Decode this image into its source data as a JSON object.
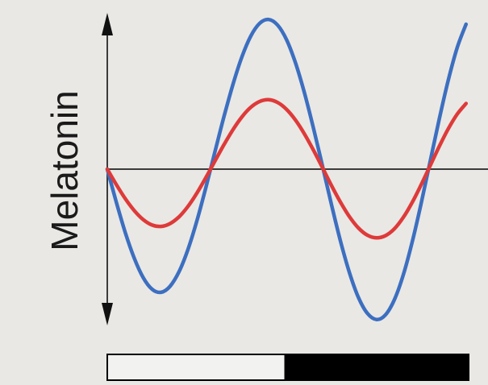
{
  "chart_data": {
    "type": "line",
    "title": "",
    "xlabel": "",
    "ylabel": "Melatonin",
    "x": [
      0,
      0.25,
      0.5,
      0.75,
      1,
      1.25,
      1.5,
      1.75,
      2,
      2.25,
      2.5,
      2.75,
      3,
      3.25,
      3.5,
      3.75,
      4,
      4.25,
      4.5,
      4.75,
      5,
      5.25,
      5.5,
      5.75,
      6,
      6.25,
      6.5,
      6.75,
      7,
      7.25,
      7.5,
      7.75,
      8,
      8.25,
      8.5,
      8.75,
      9,
      9.25,
      9.5,
      9.75,
      10
    ],
    "xlim": [
      0,
      10.5
    ],
    "ylim": [
      -1.05,
      1.05
    ],
    "series": [
      {
        "x": [
          0,
          0.25,
          0.5,
          0.75,
          1,
          1.25,
          1.5,
          1.75,
          2,
          2.25,
          2.5,
          2.75,
          3,
          3.25,
          3.5,
          3.75,
          4,
          4.25,
          4.5,
          4.75,
          5,
          5.25,
          5.5,
          5.75,
          6,
          6.25,
          6.5,
          6.75,
          7,
          7.25,
          7.5,
          7.75,
          8,
          8.25,
          8.5,
          8.75,
          9,
          9.25,
          9.5,
          9.75,
          10
        ],
        "values": [
          0,
          -0.235,
          -0.453,
          -0.638,
          -0.778,
          -0.862,
          -0.884,
          -0.841,
          -0.736,
          -0.575,
          -0.369,
          -0.13,
          0.123,
          0.374,
          0.606,
          0.804,
          0.955,
          1.047,
          1.074,
          1.033,
          0.927,
          0.76,
          0.544,
          0.292,
          0.02,
          -0.256,
          -0.516,
          -0.742,
          -0.92,
          -1.035,
          -1.079,
          -1.047,
          -0.939,
          -0.76,
          -0.523,
          -0.244,
          0.056,
          0.355,
          0.633,
          0.868,
          1.04
        ]
      },
      {
        "x": [
          0,
          0.25,
          0.5,
          0.75,
          1,
          1.25,
          1.5,
          1.75,
          2,
          2.25,
          2.5,
          2.75,
          3,
          3.25,
          3.5,
          3.75,
          4,
          4.25,
          4.5,
          4.75,
          5,
          5.25,
          5.5,
          5.75,
          6,
          6.25,
          6.5,
          6.75,
          7,
          7.25,
          7.5,
          7.75,
          8,
          8.25,
          8.5,
          8.75,
          9,
          9.25,
          9.5,
          9.75,
          10
        ],
        "values": [
          0,
          -0.11,
          -0.211,
          -0.297,
          -0.362,
          -0.401,
          -0.411,
          -0.391,
          -0.342,
          -0.267,
          -0.171,
          -0.06,
          0.057,
          0.174,
          0.282,
          0.374,
          0.444,
          0.486,
          0.498,
          0.478,
          0.428,
          0.351,
          0.251,
          0.135,
          0.009,
          -0.118,
          -0.237,
          -0.341,
          -0.422,
          -0.474,
          -0.493,
          -0.478,
          -0.429,
          -0.347,
          -0.239,
          -0.111,
          0.025,
          0.161,
          0.287,
          0.393,
          0.471
        ]
      }
    ],
    "axis_arrows": "both-ends",
    "legend": "none",
    "grid": false,
    "light_dark_bar": {
      "segments": [
        {
          "phase": "light",
          "fraction": 0.49,
          "color": "#f2f2f0"
        },
        {
          "phase": "dark",
          "fraction": 0.51,
          "color": "#000000"
        }
      ]
    },
    "colors": {
      "blue_series": "#3d6fc0",
      "red_series": "#de3a3a",
      "axis": "#3b3b3b",
      "background": "#e9e8e4"
    }
  }
}
